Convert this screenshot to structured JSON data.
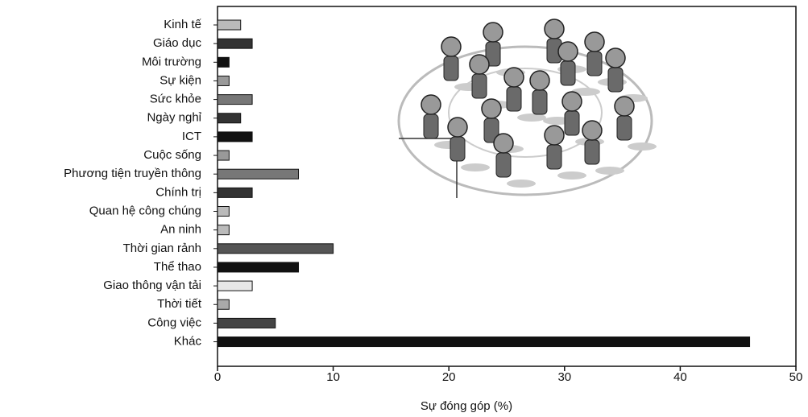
{
  "chart_data": {
    "type": "bar",
    "orientation": "horizontal",
    "x_label": "Sự đóng góp (%)",
    "categories": [
      "Kinh tế",
      "Giáo dục",
      "Môi trường",
      "Sự kiện",
      "Sức khỏe",
      "Ngày nghỉ",
      "ICT",
      "Cuộc sống",
      "Phương tiện truyền thông",
      "Chính trị",
      "Quan hệ công chúng",
      "An ninh",
      "Thời gian rảnh",
      "Thể thao",
      "Giao thông vận tải",
      "Thời tiết",
      "Công việc",
      "Khác"
    ],
    "values": [
      2,
      3,
      1,
      1,
      3,
      2,
      3,
      1,
      7,
      3,
      1,
      1,
      10,
      7,
      3,
      1,
      5,
      46
    ],
    "colors": [
      "#bbbbbb",
      "#333333",
      "#111111",
      "#999999",
      "#777777",
      "#333333",
      "#111111",
      "#999999",
      "#777777",
      "#333333",
      "#bbbbbb",
      "#bbbbbb",
      "#555555",
      "#111111",
      "#e8e8e8",
      "#aaaaaa",
      "#444444",
      "#111111"
    ],
    "xlim": [
      0,
      50
    ],
    "xticks": [
      0,
      10,
      20,
      30,
      40,
      50
    ]
  }
}
